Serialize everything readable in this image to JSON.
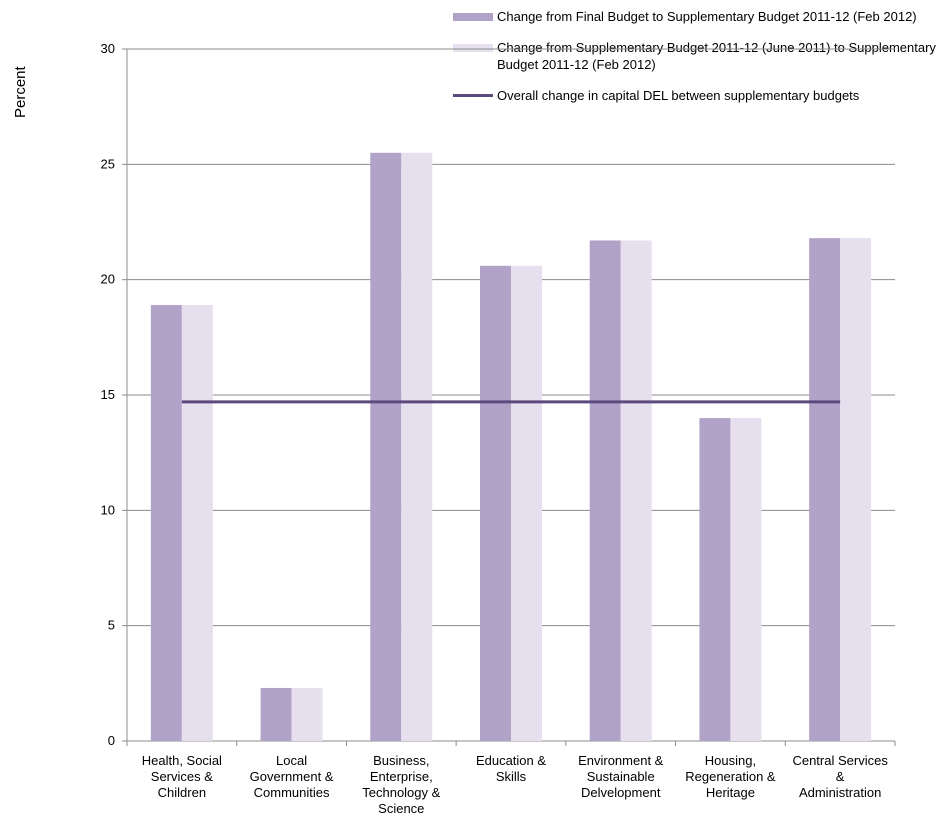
{
  "chart_data": {
    "type": "bar",
    "ylabel": "Percent",
    "ylim": [
      0,
      30
    ],
    "yticks": [
      0,
      5,
      10,
      15,
      20,
      25,
      30
    ],
    "categories": [
      [
        "Health, Social",
        "Services &",
        "Children"
      ],
      [
        "Local",
        "Government &",
        "Communities"
      ],
      [
        "Business,",
        "Enterprise,",
        "Technology &",
        "Science"
      ],
      [
        "Education &",
        "Skills"
      ],
      [
        "Environment &",
        "Sustainable",
        "Delvelopment"
      ],
      [
        "Housing,",
        "Regeneration &",
        "Heritage"
      ],
      [
        "Central Services",
        "&",
        "Administration"
      ]
    ],
    "series": [
      {
        "name": "Change from Final Budget  to Supplementary Budget 2011-12 (Feb 2012)",
        "color": "#b1a2c8",
        "values": [
          18.9,
          2.3,
          25.5,
          20.6,
          21.7,
          14.0,
          21.8
        ]
      },
      {
        "name": "Change from  Supplementary Budget 2011-12 (June 2011) to Supplementary Budget 2011-12 (Feb 2012)",
        "color": "#e6dfee",
        "values": [
          18.9,
          2.3,
          25.5,
          20.6,
          21.7,
          14.0,
          21.8
        ]
      }
    ],
    "reference_line": {
      "name": "Overall change in capital DEL between supplementary budgets",
      "color": "#5c4a7e",
      "value": 14.7
    },
    "grid": true,
    "legend_position": "top-right"
  }
}
